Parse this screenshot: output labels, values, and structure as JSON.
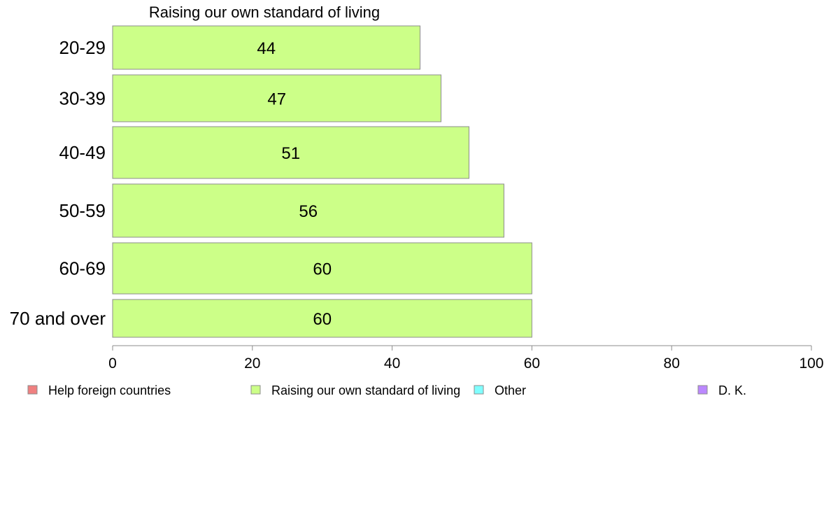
{
  "chart_data": {
    "type": "bar",
    "orientation": "horizontal",
    "title": "Raising our own standard of living",
    "categories": [
      "20-29",
      "30-39",
      "40-49",
      "50-59",
      "60-69",
      "70 and over"
    ],
    "series": [
      {
        "name": "Raising our own standard of living",
        "color": "#ccff88",
        "values": [
          44,
          47,
          51,
          56,
          60,
          60
        ]
      }
    ],
    "data_labels": [
      "44",
      "47",
      "51",
      "56",
      "60",
      "60"
    ],
    "xlim": [
      0,
      100
    ],
    "xticks": [
      0,
      20,
      40,
      60,
      80,
      100
    ],
    "tick_labels": [
      "0",
      "20",
      "40",
      "60",
      "80",
      "100"
    ],
    "grid": false,
    "legend_position": "bottom",
    "legend": [
      {
        "label": "Help foreign countries",
        "color": "#f08080"
      },
      {
        "label": "Raising our own standard of living",
        "color": "#ccff88"
      },
      {
        "label": "Other",
        "color": "#80ffff"
      },
      {
        "label": "D. K.",
        "color": "#bb88ff"
      }
    ]
  }
}
